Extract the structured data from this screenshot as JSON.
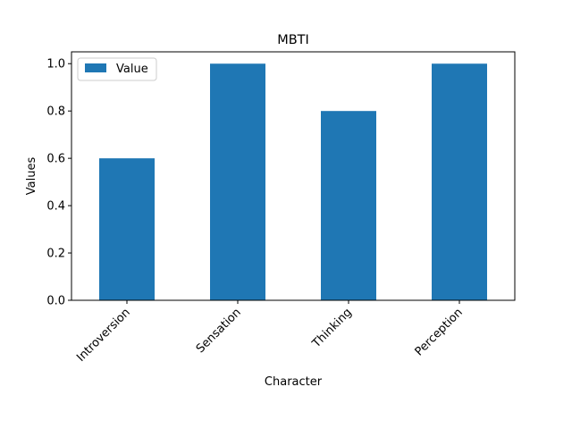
{
  "chart_data": {
    "type": "bar",
    "title": "MBTI",
    "xlabel": "Character",
    "ylabel": "Values",
    "categories": [
      "Introversion",
      "Sensation",
      "Thinking",
      "Perception"
    ],
    "series": [
      {
        "name": "Value",
        "values": [
          0.6,
          1.0,
          0.8,
          1.0
        ],
        "color": "#1f77b4"
      }
    ],
    "ylim": [
      0,
      1.05
    ],
    "yticks": [
      "0.0",
      "0.2",
      "0.4",
      "0.6",
      "0.8",
      "1.0"
    ],
    "grid": false,
    "legend_position": "top-left",
    "xtick_rotation": 45
  }
}
